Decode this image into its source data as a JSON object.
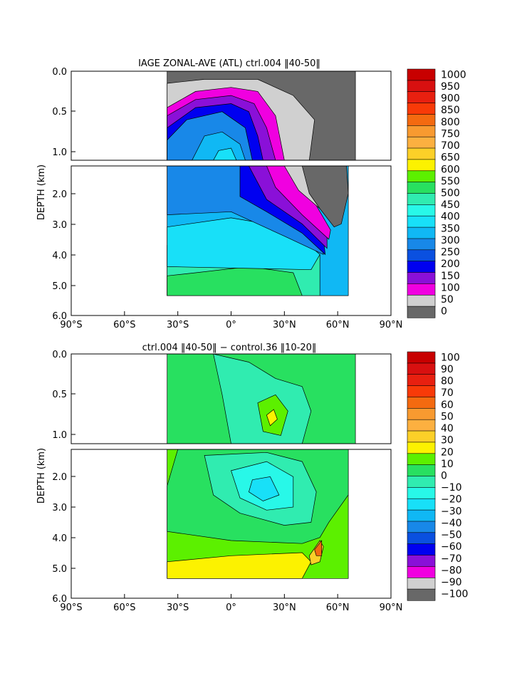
{
  "chart_data": [
    {
      "type": "heatmap",
      "title": "IAGE ZONAL-AVE (ATL) ctrl.004 ‖40-50‖",
      "ylabel": "DEPTH (km)",
      "xlabel": "",
      "x_ticks": [
        "90°S",
        "60°S",
        "30°S",
        "0°",
        "30°N",
        "60°N",
        "90°N"
      ],
      "x_range": [
        -90,
        90
      ],
      "y_ticks_upper": [
        "0.0",
        "0.5",
        "1.0"
      ],
      "y_ticks_lower": [
        "2.0",
        "3.0",
        "4.0",
        "5.0",
        "6.0"
      ],
      "y_range_km": [
        0,
        6
      ],
      "upper_panel_depth_km": [
        0,
        1.1
      ],
      "lower_panel_depth_km": [
        1.1,
        6
      ],
      "colorbar_labels": [
        "1000",
        "950",
        "900",
        "850",
        "800",
        "750",
        "700",
        "650",
        "600",
        "550",
        "500",
        "450",
        "400",
        "350",
        "300",
        "250",
        "200",
        "150",
        "100",
        "50",
        "0"
      ],
      "colorbar_colors": [
        "#c80000",
        "#d81010",
        "#e82010",
        "#f83a08",
        "#f46a10",
        "#f89a30",
        "#fcb040",
        "#fcd028",
        "#fcf200",
        "#5cf000",
        "#28e060",
        "#30ecb0",
        "#28f8e8",
        "#18e0f8",
        "#10b8f4",
        "#1888e8",
        "#0a50e0",
        "#0000f0",
        "#8a10d8",
        "#f000e0",
        "#d0d0d0",
        "#686868"
      ],
      "contours_upper": [
        {
          "level": 50,
          "color": "#686868",
          "points": [
            [
              -36,
              0.0
            ],
            [
              70,
              0.0
            ],
            [
              70,
              1.1
            ],
            [
              -36,
              1.1
            ]
          ]
        },
        {
          "level": 100,
          "color": "#d0d0d0",
          "points": [
            [
              -36,
              0.15
            ],
            [
              -15,
              0.1
            ],
            [
              15,
              0.1
            ],
            [
              35,
              0.3
            ],
            [
              47,
              0.6
            ],
            [
              44,
              1.1
            ],
            [
              -36,
              1.1
            ]
          ]
        },
        {
          "level": 150,
          "color": "#f000e0",
          "points": [
            [
              -36,
              0.45
            ],
            [
              -20,
              0.25
            ],
            [
              0,
              0.2
            ],
            [
              15,
              0.25
            ],
            [
              25,
              0.55
            ],
            [
              30,
              1.1
            ],
            [
              -36,
              1.1
            ]
          ]
        },
        {
          "level": 200,
          "color": "#8a10d8",
          "points": [
            [
              -36,
              0.55
            ],
            [
              -20,
              0.35
            ],
            [
              0,
              0.3
            ],
            [
              13,
              0.4
            ],
            [
              20,
              0.7
            ],
            [
              25,
              1.1
            ],
            [
              -36,
              1.1
            ]
          ]
        },
        {
          "level": 250,
          "color": "#0000f0",
          "points": [
            [
              -36,
              0.7
            ],
            [
              -20,
              0.45
            ],
            [
              0,
              0.4
            ],
            [
              10,
              0.5
            ],
            [
              15,
              0.8
            ],
            [
              18,
              1.1
            ],
            [
              -36,
              1.1
            ]
          ]
        },
        {
          "level": 300,
          "color": "#1888e8",
          "points": [
            [
              -36,
              0.85
            ],
            [
              -25,
              0.6
            ],
            [
              -5,
              0.5
            ],
            [
              8,
              0.7
            ],
            [
              12,
              1.1
            ],
            [
              -36,
              1.1
            ]
          ]
        },
        {
          "level": 350,
          "color": "#10b8f4",
          "points": [
            [
              -22,
              1.1
            ],
            [
              -15,
              0.8
            ],
            [
              -5,
              0.75
            ],
            [
              5,
              0.9
            ],
            [
              8,
              1.1
            ]
          ]
        },
        {
          "level": 400,
          "color": "#18e0f8",
          "points": [
            [
              -10,
              1.1
            ],
            [
              -7,
              0.98
            ],
            [
              0,
              0.95
            ],
            [
              3,
              1.1
            ]
          ]
        }
      ],
      "contours_lower": [
        {
          "level": 350,
          "color": "#10b8f4",
          "points": [
            [
              -36,
              1.1
            ],
            [
              66,
              1.1
            ],
            [
              66,
              5.35
            ],
            [
              -36,
              5.35
            ]
          ]
        },
        {
          "level": 450,
          "color": "#30ecb0",
          "points": [
            [
              -36,
              3.7
            ],
            [
              0,
              3.5
            ],
            [
              30,
              3.6
            ],
            [
              50,
              4.0
            ],
            [
              50,
              5.35
            ],
            [
              -36,
              5.35
            ]
          ]
        },
        {
          "level": 500,
          "color": "#28e060",
          "points": [
            [
              -36,
              4.7
            ],
            [
              -20,
              4.6
            ],
            [
              10,
              4.4
            ],
            [
              35,
              4.6
            ],
            [
              40,
              5.35
            ],
            [
              -36,
              5.35
            ]
          ]
        },
        {
          "level": 400,
          "color": "#18e0f8",
          "points": [
            [
              -36,
              3.1
            ],
            [
              0,
              2.8
            ],
            [
              20,
              3.0
            ],
            [
              40,
              3.5
            ],
            [
              50,
              4.0
            ],
            [
              45,
              4.5
            ],
            [
              -36,
              4.4
            ]
          ]
        },
        {
          "level": 300,
          "color": "#1888e8",
          "points": [
            [
              -36,
              1.1
            ],
            [
              35,
              1.1
            ],
            [
              38,
              2.2
            ],
            [
              50,
              3.3
            ],
            [
              52,
              4.0
            ],
            [
              30,
              3.4
            ],
            [
              0,
              2.6
            ],
            [
              -36,
              2.7
            ]
          ]
        },
        {
          "level": 250,
          "color": "#0000f0",
          "points": [
            [
              5,
              1.1
            ],
            [
              35,
              1.1
            ],
            [
              40,
              2.5
            ],
            [
              52,
              3.5
            ],
            [
              53,
              4.0
            ],
            [
              40,
              3.3
            ],
            [
              20,
              2.6
            ],
            [
              5,
              2.1
            ]
          ]
        },
        {
          "level": 200,
          "color": "#8a10d8",
          "points": [
            [
              10,
              1.1
            ],
            [
              35,
              1.1
            ],
            [
              45,
              2.5
            ],
            [
              54,
              3.4
            ],
            [
              54,
              3.8
            ],
            [
              40,
              3.0
            ],
            [
              20,
              2.2
            ]
          ]
        },
        {
          "level": 150,
          "color": "#f000e0",
          "points": [
            [
              20,
              1.1
            ],
            [
              38,
              1.1
            ],
            [
              48,
              2.4
            ],
            [
              56,
              3.2
            ],
            [
              55,
              3.5
            ],
            [
              40,
              2.7
            ],
            [
              25,
              1.8
            ]
          ]
        },
        {
          "level": 100,
          "color": "#d0d0d0",
          "points": [
            [
              30,
              1.1
            ],
            [
              45,
              1.1
            ],
            [
              58,
              2.2
            ],
            [
              60,
              2.9
            ],
            [
              50,
              2.5
            ],
            [
              38,
              1.9
            ]
          ]
        },
        {
          "level": 50,
          "color": "#686868",
          "points": [
            [
              40,
              1.1
            ],
            [
              65,
              1.1
            ],
            [
              66,
              2.0
            ],
            [
              62,
              3.0
            ],
            [
              58,
              3.1
            ],
            [
              50,
              2.5
            ],
            [
              44,
              2.0
            ]
          ]
        }
      ]
    },
    {
      "type": "heatmap",
      "title": "ctrl.004 ‖40-50‖ − control.36 ‖10-20‖",
      "ylabel": "DEPTH (km)",
      "xlabel": "",
      "x_ticks": [
        "90°S",
        "60°S",
        "30°S",
        "0°",
        "30°N",
        "60°N",
        "90°N"
      ],
      "x_range": [
        -90,
        90
      ],
      "y_ticks_upper": [
        "0.0",
        "0.5",
        "1.0"
      ],
      "y_ticks_lower": [
        "2.0",
        "3.0",
        "4.0",
        "5.0",
        "6.0"
      ],
      "y_range_km": [
        0,
        6
      ],
      "colorbar_labels": [
        "100",
        "90",
        "80",
        "70",
        "60",
        "50",
        "40",
        "30",
        "20",
        "10",
        "0",
        "−10",
        "−20",
        "−30",
        "−40",
        "−50",
        "−60",
        "−70",
        "−80",
        "−90",
        "−100"
      ],
      "colorbar_colors": [
        "#c80000",
        "#d81010",
        "#e82010",
        "#f83a08",
        "#f46a10",
        "#f89a30",
        "#fcb040",
        "#fcd028",
        "#fcf200",
        "#5cf000",
        "#28e060",
        "#30ecb0",
        "#28f8e8",
        "#18e0f8",
        "#10b8f4",
        "#1888e8",
        "#0a50e0",
        "#0000f0",
        "#8a10d8",
        "#f000e0",
        "#d0d0d0",
        "#686868"
      ],
      "contours_upper": [
        {
          "level": 0,
          "color": "#28e060",
          "points": [
            [
              -36,
              0.0
            ],
            [
              70,
              0.0
            ],
            [
              70,
              1.1
            ],
            [
              -36,
              1.1
            ]
          ]
        },
        {
          "level": -10,
          "color": "#30ecb0",
          "points": [
            [
              -10,
              0.0
            ],
            [
              10,
              0.1
            ],
            [
              25,
              0.3
            ],
            [
              40,
              0.4
            ],
            [
              45,
              0.7
            ],
            [
              40,
              1.1
            ],
            [
              0,
              1.1
            ],
            [
              -5,
              0.5
            ]
          ]
        },
        {
          "level": 10,
          "color": "#5cf000",
          "points": [
            [
              15,
              0.6
            ],
            [
              25,
              0.5
            ],
            [
              32,
              0.7
            ],
            [
              28,
              1.0
            ],
            [
              18,
              0.95
            ]
          ]
        },
        {
          "level": 20,
          "color": "#fcf200",
          "points": [
            [
              20,
              0.75
            ],
            [
              24,
              0.68
            ],
            [
              26,
              0.8
            ],
            [
              22,
              0.88
            ]
          ]
        }
      ],
      "contours_lower": [
        {
          "level": 10,
          "color": "#5cf000",
          "points": [
            [
              -36,
              1.1
            ],
            [
              66,
              1.1
            ],
            [
              66,
              5.35
            ],
            [
              -36,
              5.35
            ]
          ]
        },
        {
          "level": 0,
          "color": "#28e060",
          "points": [
            [
              -30,
              1.1
            ],
            [
              66,
              1.1
            ],
            [
              66,
              2.6
            ],
            [
              55,
              3.5
            ],
            [
              50,
              4.0
            ],
            [
              40,
              4.2
            ],
            [
              0,
              4.1
            ],
            [
              -36,
              3.8
            ],
            [
              -36,
              2.3
            ]
          ]
        },
        {
          "level": -10,
          "color": "#30ecb0",
          "points": [
            [
              -15,
              1.3
            ],
            [
              20,
              1.2
            ],
            [
              40,
              1.5
            ],
            [
              48,
              2.5
            ],
            [
              45,
              3.5
            ],
            [
              30,
              3.6
            ],
            [
              5,
              3.2
            ],
            [
              -10,
              2.6
            ]
          ]
        },
        {
          "level": -20,
          "color": "#28f8e8",
          "points": [
            [
              0,
              1.8
            ],
            [
              20,
              1.5
            ],
            [
              35,
              2.0
            ],
            [
              35,
              3.0
            ],
            [
              20,
              3.1
            ],
            [
              5,
              2.7
            ]
          ]
        },
        {
          "level": -30,
          "color": "#18e0f8",
          "points": [
            [
              12,
              2.1
            ],
            [
              22,
              2.0
            ],
            [
              27,
              2.6
            ],
            [
              18,
              2.8
            ],
            [
              10,
              2.5
            ]
          ]
        },
        {
          "level": 20,
          "color": "#fcf200",
          "points": [
            [
              -36,
              5.35
            ],
            [
              -36,
              4.8
            ],
            [
              0,
              4.6
            ],
            [
              40,
              4.5
            ],
            [
              45,
              4.8
            ],
            [
              40,
              5.35
            ]
          ]
        },
        {
          "level": 30,
          "color": "#fcd028",
          "points": [
            [
              44,
              4.6
            ],
            [
              50,
              4.1
            ],
            [
              52,
              4.3
            ],
            [
              50,
              4.8
            ],
            [
              45,
              4.9
            ]
          ]
        },
        {
          "level": 60,
          "color": "#f46a10",
          "points": [
            [
              47,
              4.4
            ],
            [
              51,
              4.1
            ],
            [
              51,
              4.6
            ],
            [
              48,
              4.6
            ]
          ]
        }
      ]
    }
  ]
}
